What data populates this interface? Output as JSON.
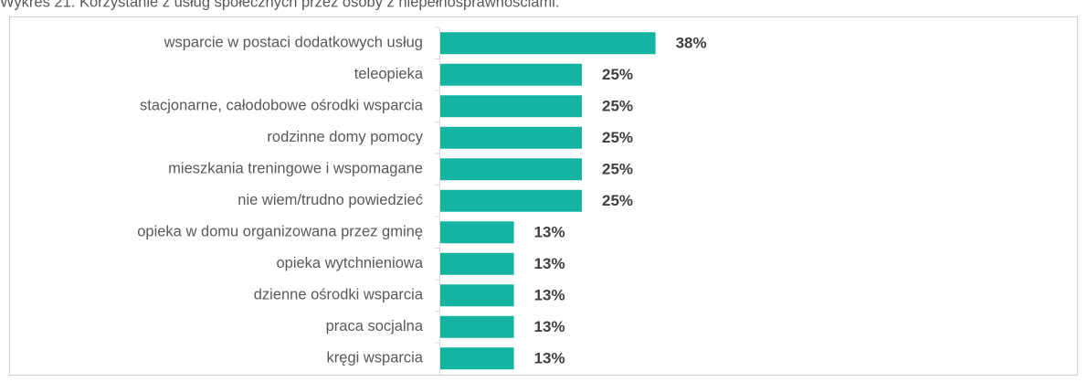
{
  "chart_data": {
    "type": "bar",
    "orientation": "horizontal",
    "title": "Wykres 21. Korzystanie z usług społecznych przez osoby z niepełnosprawnościami.",
    "categories": [
      "wsparcie w postaci dodatkowych usług",
      "teleopieka",
      "stacjonarne, całodobowe ośrodki wsparcia",
      "rodzinne domy pomocy",
      "mieszkania treningowe i wspomagane",
      "nie wiem/trudno powiedzieć",
      "opieka w domu organizowana przez gminę",
      "opieka wytchnieniowa",
      "dzienne ośrodki wsparcia",
      "praca socjalna",
      "kręgi wsparcia"
    ],
    "values": [
      38,
      25,
      25,
      25,
      25,
      25,
      13,
      13,
      13,
      13,
      13
    ],
    "value_labels": [
      "38%",
      "25%",
      "25%",
      "25%",
      "25%",
      "25%",
      "13%",
      "13%",
      "13%",
      "13%",
      "13%"
    ],
    "color": "#13b5a2"
  }
}
